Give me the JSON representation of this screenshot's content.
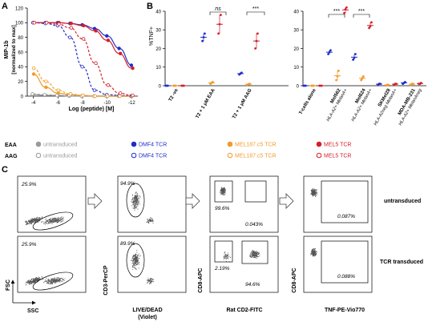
{
  "panel_letters": [
    "A",
    "B",
    "C"
  ],
  "colors": {
    "untransduced": "#9a9a9a",
    "dmf4": "#1f2fc8",
    "mel187": "#f39a2a",
    "mel5": "#d3202a",
    "axis": "#000000"
  },
  "panelA": {
    "chart_data": {
      "type": "line",
      "xlabel": "Log (peptide) [M]",
      "ylabel": "MIP-1b [normalized to max]",
      "xlim": [
        -3.5,
        -12.5
      ],
      "ylim": [
        0,
        120
      ],
      "x_ticks": [
        -4,
        -6,
        -8,
        -10,
        -12
      ],
      "y_ticks": [
        0,
        20,
        40,
        60,
        80,
        100,
        120
      ],
      "x": [
        -4,
        -5,
        -6,
        -7,
        -8,
        -9,
        -10,
        -11,
        -12
      ],
      "series": [
        {
          "name": "EAA untransduced",
          "color": "#9a9a9a",
          "filled": true,
          "values": [
            2,
            1,
            1,
            0,
            0,
            0,
            0,
            0,
            0
          ]
        },
        {
          "name": "EAA DMF4 TCR",
          "color": "#1f2fc8",
          "filled": true,
          "values": [
            100,
            100,
            100,
            99,
            97,
            92,
            82,
            65,
            42
          ]
        },
        {
          "name": "EAA MEL187.c5 TCR",
          "color": "#f39a2a",
          "filled": true,
          "values": [
            30,
            12,
            4,
            2,
            1,
            0,
            0,
            0,
            0
          ]
        },
        {
          "name": "EAA MEL5 TCR",
          "color": "#d3202a",
          "filled": true,
          "values": [
            100,
            100,
            100,
            99,
            96,
            89,
            76,
            58,
            38
          ]
        },
        {
          "name": "AAG untransduced",
          "color": "#9a9a9a",
          "filled": false,
          "values": [
            3,
            2,
            1,
            1,
            0,
            0,
            0,
            0,
            0
          ]
        },
        {
          "name": "AAG DMF4 TCR",
          "color": "#1f2fc8",
          "filled": false,
          "values": [
            100,
            99,
            96,
            80,
            40,
            8,
            2,
            1,
            0
          ]
        },
        {
          "name": "AAG MEL187.c5 TCR",
          "color": "#f39a2a",
          "filled": false,
          "values": [
            38,
            20,
            8,
            3,
            1,
            0,
            0,
            0,
            0
          ]
        },
        {
          "name": "AAG MEL5 TCR",
          "color": "#d3202a",
          "filled": false,
          "values": [
            100,
            100,
            98,
            93,
            78,
            45,
            15,
            4,
            1
          ]
        }
      ]
    }
  },
  "panelB": {
    "chart_data": {
      "type": "scatter",
      "ylabel": "%TNF+",
      "ylim": [
        0,
        40
      ],
      "y_ticks": [
        0,
        10,
        20,
        30,
        40
      ],
      "groups_left": [
        {
          "label": "T2 -ve",
          "points": [
            {
              "series": "DMF4 TCR",
              "values": [
                0,
                0,
                0
              ]
            },
            {
              "series": "MEL187.c5 TCR",
              "values": [
                0,
                0,
                0
              ]
            },
            {
              "series": "MEL5 TCR",
              "values": [
                0,
                0,
                0
              ]
            }
          ]
        },
        {
          "label": "T2 + 1 μM EAA",
          "points": [
            {
              "series": "DMF4 TCR",
              "values": [
                24,
                26,
                28
              ]
            },
            {
              "series": "MEL187.c5 TCR",
              "values": [
                1,
                1.5,
                2
              ]
            },
            {
              "series": "MEL5 TCR",
              "values": [
                28,
                33,
                38
              ]
            }
          ]
        },
        {
          "label": "T2 + 1 μM AAG",
          "points": [
            {
              "series": "DMF4 TCR",
              "values": [
                6,
                6.5,
                7
              ]
            },
            {
              "series": "MEL187.c5 TCR",
              "values": [
                0.5,
                0.8,
                1
              ]
            },
            {
              "series": "MEL5 TCR",
              "values": [
                20,
                24,
                28
              ]
            }
          ]
        }
      ],
      "groups_right": [
        {
          "label": "T-cells alone",
          "points": [
            {
              "series": "DMF4 TCR",
              "values": [
                0,
                0,
                0
              ]
            },
            {
              "series": "MEL187.c5 TCR",
              "values": [
                0,
                0,
                0
              ]
            },
            {
              "series": "MEL5 TCR",
              "values": [
                0,
                0,
                0
              ]
            }
          ]
        },
        {
          "label": "Mel562",
          "sublabel": "HLA-A2+ MelanA+",
          "points": [
            {
              "series": "DMF4 TCR",
              "values": [
                17,
                18,
                19
              ]
            },
            {
              "series": "MEL187.c5 TCR",
              "values": [
                3,
                5,
                8
              ]
            },
            {
              "series": "MEL5 TCR",
              "values": [
                39,
                41,
                42
              ]
            }
          ]
        },
        {
          "label": "Mel624",
          "sublabel": "HLA-A2+ MelanA+",
          "points": [
            {
              "series": "DMF4 TCR",
              "values": [
                14,
                15,
                17
              ]
            },
            {
              "series": "MEL187.c5 TCR",
              "values": [
                3,
                4,
                5
              ]
            },
            {
              "series": "MEL5 TCR",
              "values": [
                31,
                32,
                34
              ]
            }
          ]
        },
        {
          "label": "SKMel28",
          "sublabel": "HLA-A2neg MelanA+",
          "points": [
            {
              "series": "DMF4 TCR",
              "values": [
                0.5,
                1,
                1
              ]
            },
            {
              "series": "MEL187.c5 TCR",
              "values": [
                0,
                0.5,
                0.5
              ]
            },
            {
              "series": "MEL5 TCR",
              "values": [
                0.5,
                1,
                1
              ]
            }
          ]
        },
        {
          "label": "MDA-MB-231",
          "sublabel": "HLA-A2+ MelanAneg",
          "points": [
            {
              "series": "DMF4 TCR",
              "values": [
                1,
                1.5,
                2
              ]
            },
            {
              "series": "MEL187.c5 TCR",
              "values": [
                0.5,
                1,
                1
              ]
            },
            {
              "series": "MEL5 TCR",
              "values": [
                1,
                1,
                1.5
              ]
            }
          ]
        }
      ],
      "annotations": [
        "ns",
        "***",
        "***",
        "***"
      ]
    }
  },
  "legend": {
    "row_eaa": "EAA",
    "row_aag": "AAG",
    "items_eaa": [
      {
        "label": "untransduced",
        "color": "#9a9a9a",
        "filled": true
      },
      {
        "label": "DMF4 TCR",
        "color": "#1f2fc8",
        "filled": true
      },
      {
        "label": "MEL187.c5 TCR",
        "color": "#f39a2a",
        "filled": true
      },
      {
        "label": "MEL5 TCR",
        "color": "#d3202a",
        "filled": true
      }
    ],
    "items_aag": [
      {
        "label": "untransduced",
        "color": "#9a9a9a",
        "filled": false
      },
      {
        "label": "DMF4 TCR",
        "color": "#1f2fc8",
        "filled": false
      },
      {
        "label": "MEL187.c5 TCR",
        "color": "#f39a2a",
        "filled": false
      },
      {
        "label": "MEL5 TCR",
        "color": "#d3202a",
        "filled": false
      }
    ]
  },
  "panelC": {
    "row_labels": [
      "untransduced",
      "TCR transduced"
    ],
    "plots": [
      {
        "row": 0,
        "col": 0,
        "gate_pct": "25.9%"
      },
      {
        "row": 0,
        "col": 1,
        "gate_pct": "94.9%"
      },
      {
        "row": 0,
        "col": 2,
        "gate_pct": "99.6%",
        "gate_pct2": "0.043%"
      },
      {
        "row": 0,
        "col": 3,
        "gate_pct": "0.087%"
      },
      {
        "row": 1,
        "col": 0,
        "gate_pct": "25.9%"
      },
      {
        "row": 1,
        "col": 1,
        "gate_pct": "89.9%"
      },
      {
        "row": 1,
        "col": 2,
        "gate_pct": "2.19%",
        "gate_pct2": "94.6%"
      },
      {
        "row": 1,
        "col": 3,
        "gate_pct": "0.088%"
      }
    ],
    "axes": {
      "col0": {
        "x": "SSC",
        "y": "FSC"
      },
      "col1": {
        "x": "LIVE/DEAD",
        "x2": "(Violet)",
        "y": "CD3-PerCP"
      },
      "col2": {
        "x": "Rat CD2-FITC",
        "y": "CD8-APC"
      },
      "col3": {
        "x": "TNF-PE-Vio770",
        "y": "CD8-APC"
      }
    }
  }
}
